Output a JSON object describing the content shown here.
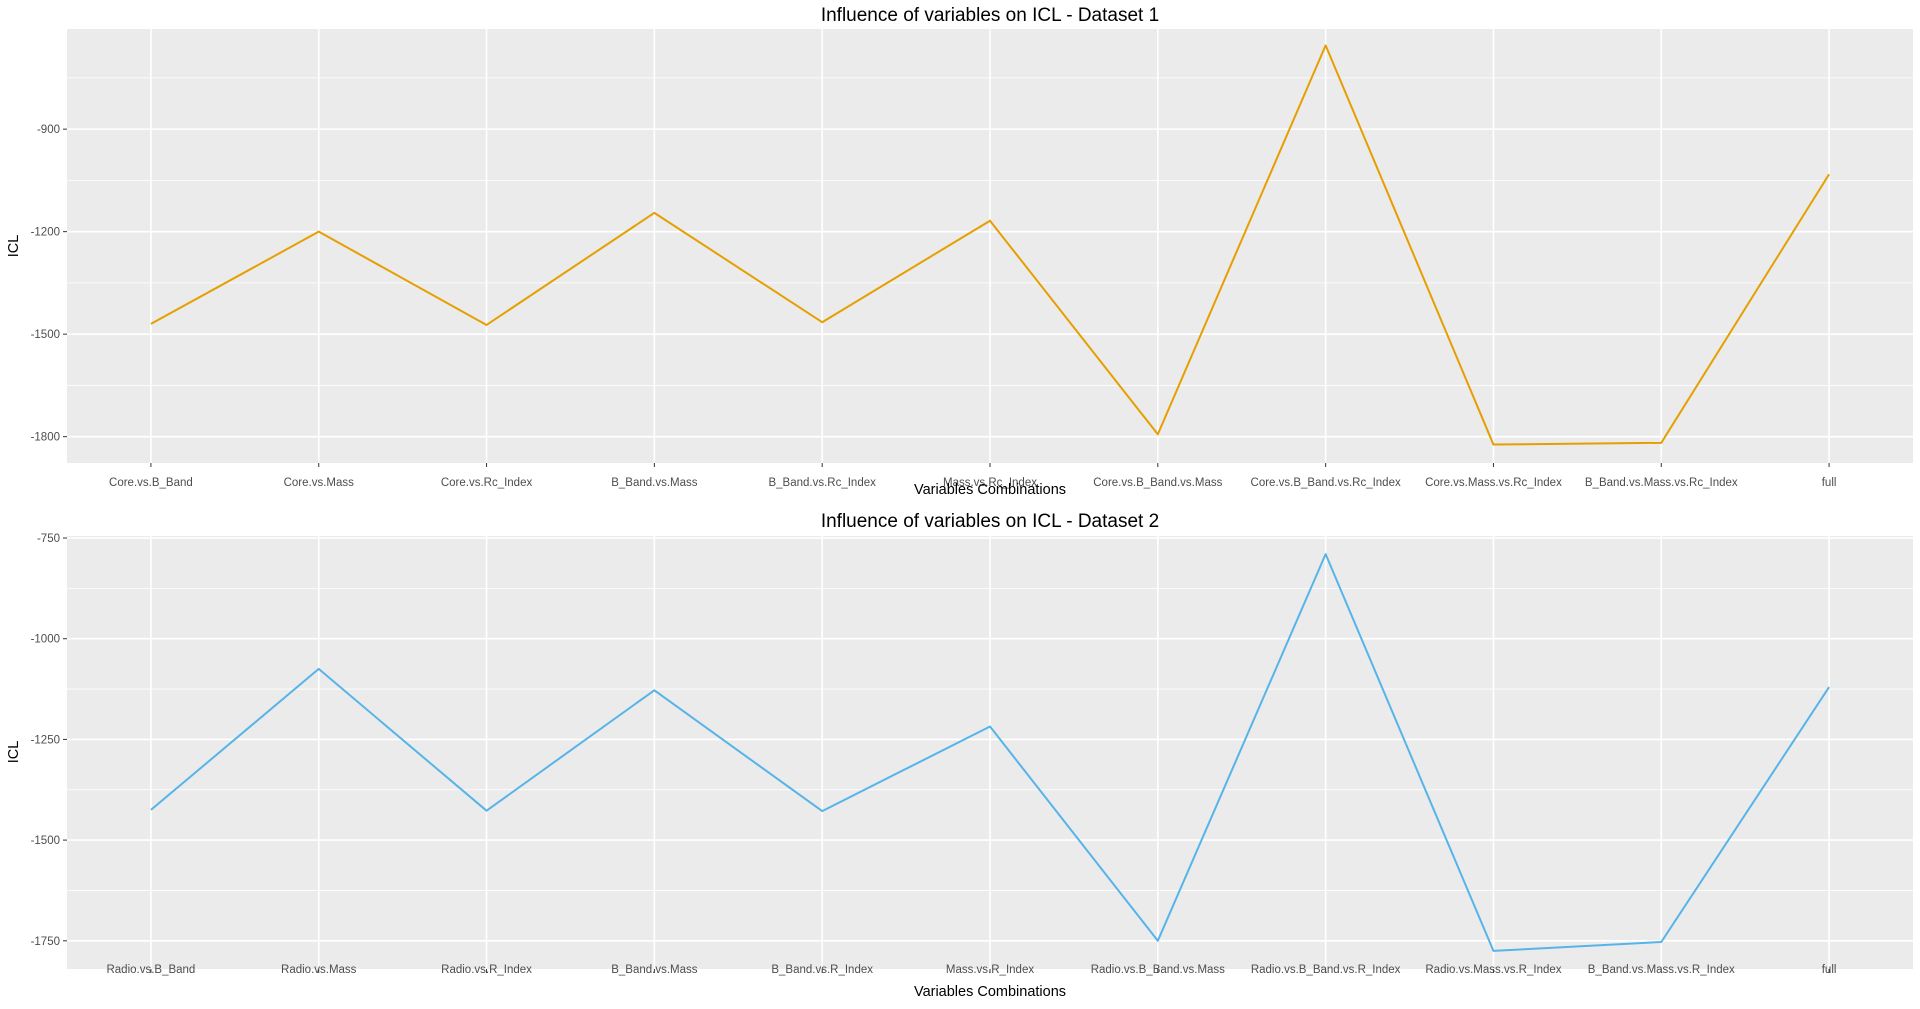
{
  "chart_data": [
    {
      "type": "line",
      "title": "Influence of variables on ICL - Dataset 1",
      "xlabel": "Variables Combinations",
      "ylabel": "ICL",
      "categories": [
        "Core.vs.B_Band",
        "Core.vs.Mass",
        "Core.vs.Rc_Index",
        "B_Band.vs.Mass",
        "B_Band.vs.Rc_Index",
        "Mass.vs.Rc_Index",
        "Core.vs.B_Band.vs.Mass",
        "Core.vs.B_Band.vs.Rc_Index",
        "Core.vs.Mass.vs.Rc_Index",
        "B_Band.vs.Mass.vs.Rc_Index",
        "full"
      ],
      "values": [
        -1470,
        -1200,
        -1473,
        -1145,
        -1465,
        -1168,
        -1793,
        -655,
        -1823,
        -1818,
        -1032
      ],
      "ylim": [
        -1877,
        -607
      ],
      "yticks": [
        -1800,
        -1500,
        -1200,
        -900
      ],
      "ytick_labels": [
        "-1800",
        "-1500",
        "-1200",
        "-900"
      ],
      "color": "#E69F00",
      "grid": true,
      "legend": "none"
    },
    {
      "type": "line",
      "title": "Influence of variables on ICL - Dataset 2",
      "xlabel": "Variables Combinations",
      "ylabel": "ICL",
      "categories": [
        "Radio.vs.B_Band",
        "Radio.vs.Mass",
        "Radio.vs.R_Index",
        "B_Band.vs.Mass",
        "B_Band.vs.R_Index",
        "Mass.vs.R_Index",
        "Radio.vs.B_Band.vs.Mass",
        "Radio.vs.B_Band.vs.R_Index",
        "Radio.vs.Mass.vs.R_Index",
        "B_Band.vs.Mass.vs.R_Index",
        "full"
      ],
      "values": [
        -1425,
        -1075,
        -1427,
        -1128,
        -1428,
        -1218,
        -1750,
        -790,
        -1775,
        -1753,
        -1120
      ],
      "ylim": [
        -1820,
        -745
      ],
      "yticks": [
        -1750,
        -1500,
        -1250,
        -1000,
        -750
      ],
      "ytick_labels": [
        "-1750",
        "-1500",
        "-1250",
        "-1000",
        "-750"
      ],
      "color": "#56B4E9",
      "grid": true,
      "legend": "none"
    }
  ]
}
